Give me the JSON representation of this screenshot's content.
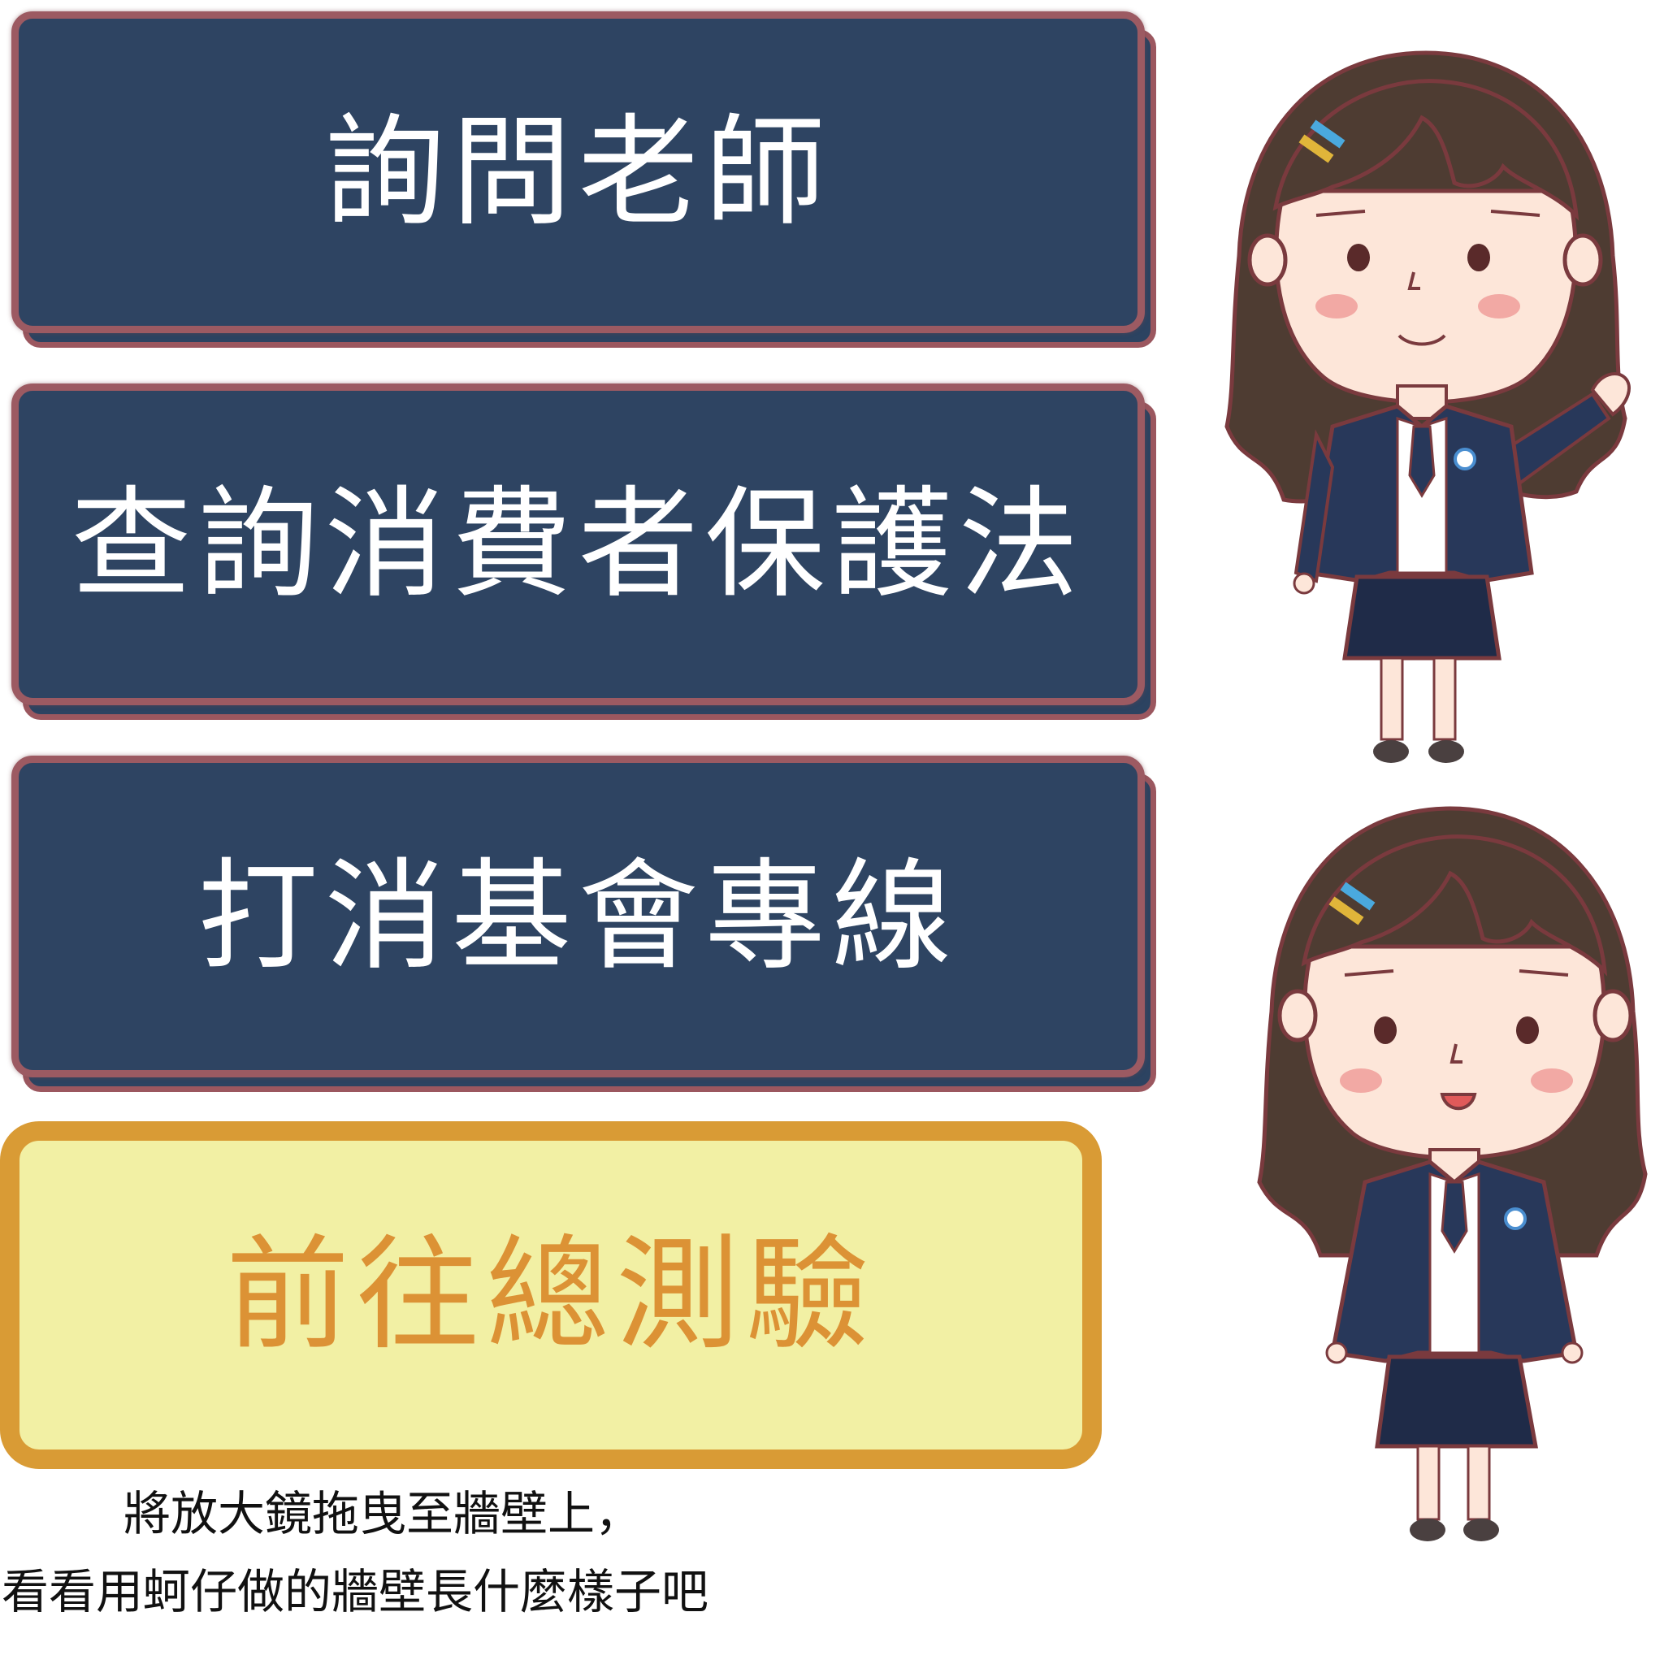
{
  "buttons": [
    {
      "label": "詢問老師"
    },
    {
      "label": "查詢消費者保護法"
    },
    {
      "label": "打消基會專線"
    }
  ],
  "quiz_button": {
    "label": "前往總測驗"
  },
  "instruction": {
    "line1": "將放大鏡拖曳至牆壁上，",
    "line2": "看看用蚵仔做的牆壁長什麼樣子吧"
  },
  "colors": {
    "button_face": "#2e4462",
    "button_border": "#9c5a62",
    "quiz_fill": "#f2f0a4",
    "quiz_border": "#d99b35",
    "quiz_text": "#dc9235"
  },
  "icons": [
    "girl-waving-illustration",
    "girl-smiling-illustration"
  ]
}
